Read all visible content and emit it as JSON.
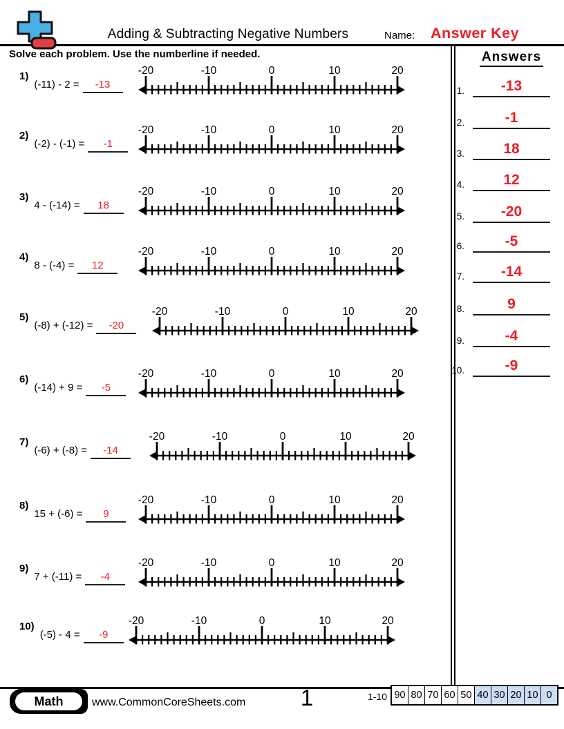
{
  "header": {
    "title": "Adding & Subtracting Negative Numbers",
    "name_label": "Name:",
    "name_value": "Answer Key"
  },
  "instructions": "Solve each problem. Use the numberline if needed.",
  "numberline": {
    "min": -20,
    "max": 20,
    "tick_step": 1,
    "mid_tick_step": 5,
    "major_labels": [
      "-20",
      "-10",
      "0",
      "10",
      "20"
    ]
  },
  "problems": [
    {
      "n": "1)",
      "expression": "(-11) - 2 =",
      "answer": "-13"
    },
    {
      "n": "2)",
      "expression": "(-2) - (-1) =",
      "answer": "-1"
    },
    {
      "n": "3)",
      "expression": "4 - (-14) =",
      "answer": "18"
    },
    {
      "n": "4)",
      "expression": "8 - (-4) =",
      "answer": "12"
    },
    {
      "n": "5)",
      "expression": "(-8) + (-12) =",
      "answer": "-20"
    },
    {
      "n": "6)",
      "expression": "(-14) + 9 =",
      "answer": "-5"
    },
    {
      "n": "7)",
      "expression": "(-6) + (-8) =",
      "answer": "-14"
    },
    {
      "n": "8)",
      "expression": "15 + (-6) =",
      "answer": "9"
    },
    {
      "n": "9)",
      "expression": "7 + (-11) =",
      "answer": "-4"
    },
    {
      "n": "10)",
      "expression": "(-5) - 4 =",
      "answer": "-9"
    }
  ],
  "answers_panel": {
    "title": "Answers",
    "items": [
      {
        "n": "1.",
        "value": "-13"
      },
      {
        "n": "2.",
        "value": "-1"
      },
      {
        "n": "3.",
        "value": "18"
      },
      {
        "n": "4.",
        "value": "12"
      },
      {
        "n": "5.",
        "value": "-20"
      },
      {
        "n": "6.",
        "value": "-5"
      },
      {
        "n": "7.",
        "value": "-14"
      },
      {
        "n": "8.",
        "value": "9"
      },
      {
        "n": "9.",
        "value": "-4"
      },
      {
        "n": "10.",
        "value": "-9"
      }
    ]
  },
  "footer": {
    "subject_badge": "Math",
    "website": "www.CommonCoreSheets.com",
    "page_number": "1",
    "score_label": "1-10",
    "score_cells": [
      "90",
      "80",
      "70",
      "60",
      "50",
      "40",
      "30",
      "20",
      "10",
      "0"
    ],
    "score_highlight_from_index": 5
  },
  "colors": {
    "answer_red": "#ee1c24",
    "logo_blue": "#4ab0e6",
    "logo_red": "#e04040",
    "score_highlight_blue": "#cdddf6"
  }
}
